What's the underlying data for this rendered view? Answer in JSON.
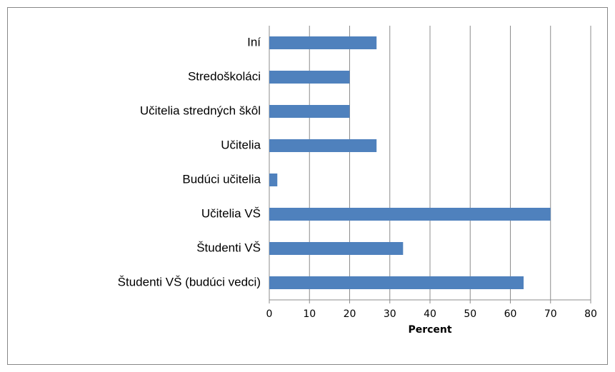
{
  "chart_data": {
    "type": "bar",
    "orientation": "horizontal",
    "categories": [
      "Iní",
      "Stredoškoláci",
      "Učitelia stredných škôl",
      "Učitelia",
      "Budúci učitelia",
      "Učitelia VŠ",
      "Študenti VŠ",
      "Študenti VŠ (budúci vedci)"
    ],
    "values": [
      26.7,
      20,
      20,
      26.7,
      2,
      70,
      33.3,
      63.3
    ],
    "color": "#4f81bd",
    "xlabel": "Percent",
    "xlim": [
      0,
      80
    ],
    "xticks": [
      0,
      10,
      20,
      30,
      40,
      50,
      60,
      70,
      80
    ],
    "grid": true
  }
}
